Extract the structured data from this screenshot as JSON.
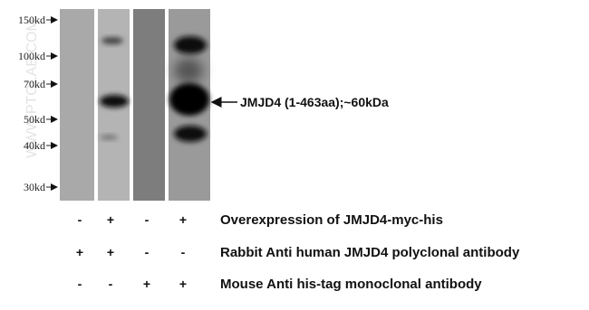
{
  "markers": [
    "150kd",
    "100kd",
    "70kd",
    "50kd",
    "40kd",
    "30kd"
  ],
  "watermark": "WWW.PTGLAB.COM",
  "annotation": "JMJD4 (1-463aa);~60kDa",
  "conditions": [
    {
      "label": "Overexpression of JMJD4-myc-his",
      "signs": [
        "-",
        "+",
        "-",
        "+"
      ]
    },
    {
      "label": "Rabbit Anti human JMJD4 polyclonal antibody",
      "signs": [
        "+",
        "+",
        "-",
        "-"
      ]
    },
    {
      "label": "Mouse Anti his-tag monoclonal antibody",
      "signs": [
        "-",
        "-",
        "+",
        "+"
      ]
    }
  ]
}
